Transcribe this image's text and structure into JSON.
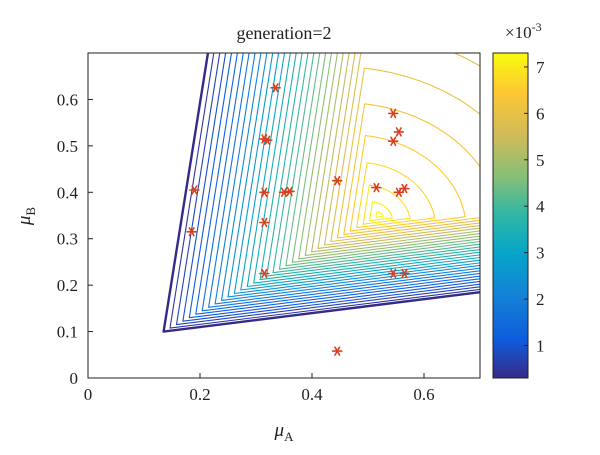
{
  "chart_data": {
    "type": "contour",
    "title": "generation=2",
    "xlabel": {
      "symbol": "μ",
      "sub": "A"
    },
    "ylabel": {
      "symbol": "μ",
      "sub": "B"
    },
    "xlim": [
      0,
      0.7
    ],
    "ylim": [
      0,
      0.7
    ],
    "xticks": [
      "0",
      "0.2",
      "0.4",
      "0.6"
    ],
    "xtick_values": [
      0,
      0.2,
      0.4,
      0.6
    ],
    "yticks": [
      "0",
      "0.1",
      "0.2",
      "0.3",
      "0.4",
      "0.5",
      "0.6"
    ],
    "ytick_values": [
      0,
      0.1,
      0.2,
      0.3,
      0.4,
      0.5,
      0.6
    ],
    "grid": false,
    "colorbar": {
      "colormap": "parula",
      "range": [
        0.3,
        7.3
      ],
      "ticks": [
        "1",
        "2",
        "3",
        "4",
        "5",
        "6",
        "7"
      ],
      "tick_values": [
        1,
        2,
        3,
        4,
        5,
        6,
        7
      ],
      "multiplier": "×10",
      "exponent": "-3"
    },
    "contour": {
      "levels": 34,
      "peak": [
        0.52,
        0.35
      ],
      "feasible_region_vertex": [
        0.135,
        0.1
      ],
      "line_colors_low_to_high": [
        "#352a87",
        "#0f5cdd",
        "#1481d6",
        "#06a4ca",
        "#2eb7a4",
        "#87bf77",
        "#d1bb59",
        "#fec832",
        "#f9fb0e"
      ]
    },
    "series": [
      {
        "type": "scatter",
        "marker": "*",
        "color": "#d9401e",
        "points": [
          {
            "x": 0.335,
            "y": 0.625
          },
          {
            "x": 0.19,
            "y": 0.405
          },
          {
            "x": 0.185,
            "y": 0.315
          },
          {
            "x": 0.315,
            "y": 0.515
          },
          {
            "x": 0.32,
            "y": 0.512
          },
          {
            "x": 0.315,
            "y": 0.4
          },
          {
            "x": 0.315,
            "y": 0.335
          },
          {
            "x": 0.315,
            "y": 0.225
          },
          {
            "x": 0.35,
            "y": 0.4
          },
          {
            "x": 0.36,
            "y": 0.402
          },
          {
            "x": 0.445,
            "y": 0.425
          },
          {
            "x": 0.445,
            "y": 0.058
          },
          {
            "x": 0.515,
            "y": 0.41
          },
          {
            "x": 0.545,
            "y": 0.57
          },
          {
            "x": 0.555,
            "y": 0.53
          },
          {
            "x": 0.545,
            "y": 0.51
          },
          {
            "x": 0.555,
            "y": 0.4
          },
          {
            "x": 0.565,
            "y": 0.408
          },
          {
            "x": 0.545,
            "y": 0.225
          },
          {
            "x": 0.565,
            "y": 0.225
          }
        ]
      }
    ]
  }
}
